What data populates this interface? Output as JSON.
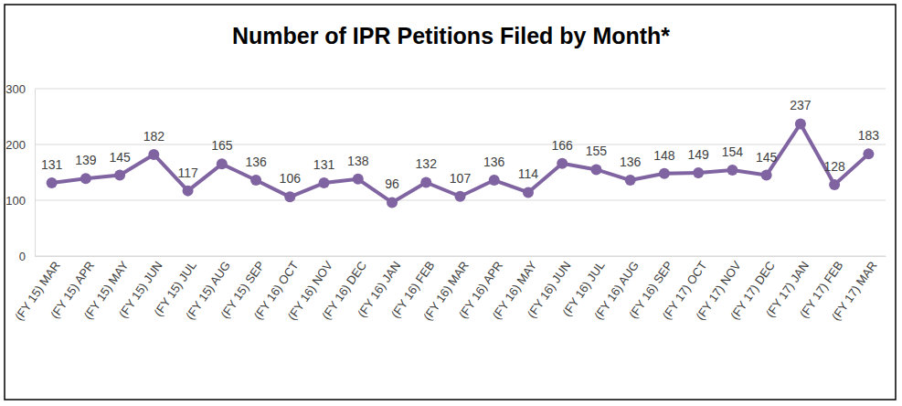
{
  "chart_data": {
    "type": "line",
    "title": "Number of IPR Petitions Filed by Month*",
    "categories": [
      "(FY 15) MAR",
      "(FY 15) APR",
      "(FY 15) MAY",
      "(FY 15) JUN",
      "(FY 15) JUL",
      "(FY 15) AUG",
      "(FY 15) SEP",
      "(FY 16) OCT",
      "(FY 16) NOV",
      "(FY 16) DEC",
      "(FY 16) JAN",
      "(FY 16) FEB",
      "(FY 16) MAR",
      "(FY 16) APR",
      "(FY 16) MAY",
      "(FY 16) JUN",
      "(FY 16) JUL",
      "(FY 16) AUG",
      "(FY 16) SEP",
      "(FY 17) OCT",
      "(FY 17) NOV",
      "(FY 17) DEC",
      "(FY 17) JAN",
      "(FY 17) FEB",
      "(FY 17) MAR"
    ],
    "values": [
      131,
      139,
      145,
      182,
      117,
      165,
      136,
      106,
      131,
      138,
      96,
      132,
      107,
      136,
      114,
      166,
      155,
      136,
      148,
      149,
      154,
      145,
      237,
      128,
      183
    ],
    "color": "#8064a2",
    "marker": "circle",
    "ylim": [
      0,
      300
    ],
    "yticks": [
      0,
      100,
      200,
      300
    ],
    "grid": true,
    "data_labels": true
  }
}
